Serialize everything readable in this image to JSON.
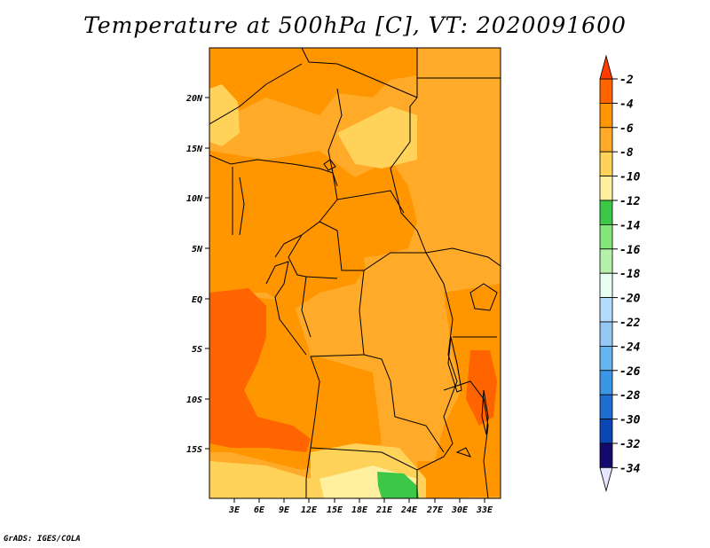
{
  "title": "Temperature at 500hPa [C], VT: 2020091600",
  "credit": "GrADS: IGES/COLA",
  "map": {
    "lat_labels": [
      "20N",
      "15N",
      "10N",
      "5N",
      "EQ",
      "5S",
      "10S",
      "15S"
    ],
    "lon_labels": [
      "3E",
      "6E",
      "9E",
      "12E",
      "15E",
      "18E",
      "21E",
      "24E",
      "27E",
      "30E",
      "33E"
    ]
  },
  "colorbar": {
    "labels": [
      "-2",
      "-4",
      "-6",
      "-8",
      "-10",
      "-12",
      "-14",
      "-16",
      "-18",
      "-20",
      "-22",
      "-24",
      "-26",
      "-28",
      "-30",
      "-32",
      "-34"
    ],
    "colors": [
      "#ff3c00",
      "#ff6400",
      "#ff9600",
      "#ffaa28",
      "#ffd25a",
      "#fff0a0",
      "#3cc846",
      "#82e678",
      "#b4f0a8",
      "#e6fff0",
      "#b4dcfa",
      "#96c8f5",
      "#64b4f0",
      "#3c96e6",
      "#1e6ed2",
      "#0a46b4",
      "#140a6e",
      "#e6e6ff"
    ],
    "top_color": "#ff3c00",
    "bottom_color": "#e6e6ff"
  },
  "colors": {
    "orange_dark": "#ff6400",
    "orange": "#ff9600",
    "light_orange": "#ffaa28",
    "yellow": "#ffd25a",
    "pale": "#fff0a0",
    "green": "#3cc846"
  }
}
